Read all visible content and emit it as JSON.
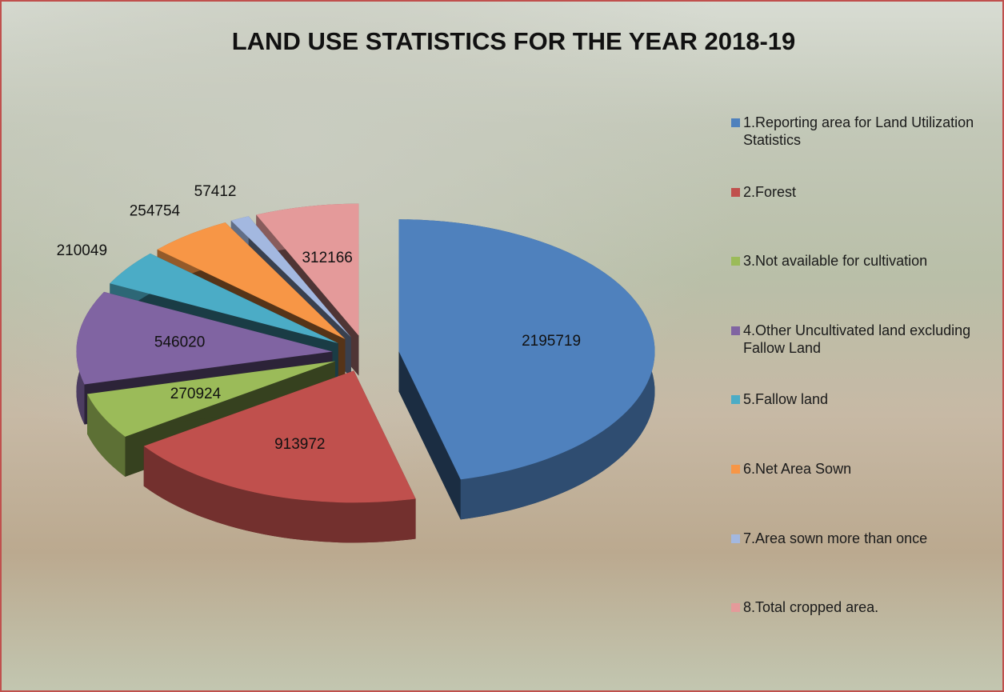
{
  "chart_data": {
    "type": "pie3d",
    "title": "LAND USE STATISTICS FOR THE YEAR 2018-19",
    "categories": [
      "1.Reporting area for Land Utilization Statistics",
      "2.Forest",
      "3.Not available for cultivation",
      "4.Other Uncultivated land excluding Fallow Land",
      "5.Fallow land",
      "6.Net Area Sown",
      "7.Area sown more than once",
      "8.Total cropped area."
    ],
    "values": [
      2195719,
      913972,
      270924,
      546020,
      210049,
      254754,
      57412,
      312166
    ],
    "colors": [
      "#4f81bd",
      "#c0504d",
      "#9bbb59",
      "#8064a2",
      "#4bacc6",
      "#f79646",
      "#a3b8e0",
      "#e49a9a"
    ],
    "legend": "right"
  }
}
